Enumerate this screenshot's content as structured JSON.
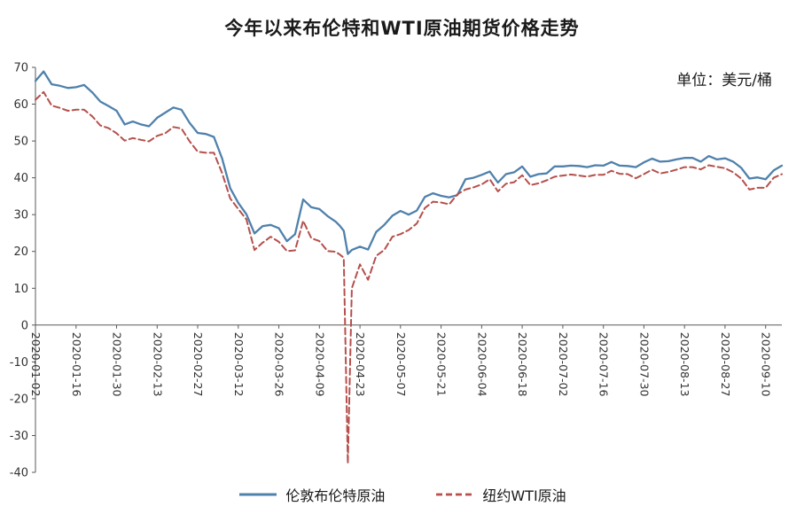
{
  "title": "今年以来布伦特和WTI原油期货价格走势",
  "unit_label": "单位：美元/桶",
  "colors": {
    "brent": "#4f81ac",
    "wti": "#b5504c",
    "axis": "#595959",
    "text": "#333333",
    "background": "#ffffff"
  },
  "chart_data": {
    "type": "line",
    "title": "今年以来布伦特和WTI原油期货价格走势",
    "ylabel": "美元/桶",
    "xlabel": "",
    "ylim": [
      -40,
      70
    ],
    "ytick_step": 10,
    "grid": false,
    "legend_position": "bottom",
    "x_tick_labels": [
      "2020-01-02",
      "2020-01-16",
      "2020-01-30",
      "2020-02-13",
      "2020-02-27",
      "2020-03-12",
      "2020-03-26",
      "2020-04-09",
      "2020-04-23",
      "2020-05-07",
      "2020-05-21",
      "2020-06-04",
      "2020-06-18",
      "2020-07-02",
      "2020-07-16",
      "2020-07-30",
      "2020-08-13",
      "2020-08-27",
      "2020-09-10"
    ],
    "x_tick_positions": [
      0,
      10,
      20,
      30,
      40,
      50,
      60,
      70,
      80,
      90,
      100,
      110,
      120,
      130,
      140,
      150,
      160,
      170,
      180
    ],
    "x": [
      0,
      2,
      4,
      6,
      8,
      10,
      12,
      14,
      16,
      18,
      20,
      22,
      24,
      26,
      28,
      30,
      32,
      34,
      36,
      38,
      40,
      42,
      44,
      46,
      48,
      50,
      52,
      54,
      56,
      58,
      60,
      62,
      64,
      66,
      68,
      70,
      72,
      74,
      75,
      76,
      77,
      78,
      80,
      82,
      84,
      86,
      88,
      90,
      92,
      94,
      96,
      98,
      100,
      102,
      104,
      106,
      108,
      110,
      112,
      114,
      116,
      118,
      120,
      122,
      124,
      126,
      128,
      130,
      132,
      134,
      136,
      138,
      140,
      142,
      144,
      146,
      148,
      150,
      152,
      154,
      156,
      158,
      160,
      162,
      164,
      166,
      168,
      170,
      172,
      174,
      176,
      178,
      180,
      182,
      184
    ],
    "series": [
      {
        "name": "伦敦布伦特原油",
        "color": "#4f81ac",
        "dash": "solid",
        "width": 2.3,
        "values": [
          66.3,
          68.9,
          65.4,
          65.0,
          64.4,
          64.6,
          65.2,
          63.2,
          60.7,
          59.5,
          58.2,
          54.5,
          55.3,
          54.5,
          54.0,
          56.3,
          57.7,
          59.1,
          58.5,
          54.9,
          52.2,
          51.9,
          51.1,
          45.3,
          37.2,
          33.2,
          30.1,
          24.9,
          26.9,
          27.2,
          26.3,
          22.8,
          24.7,
          34.1,
          32.0,
          31.5,
          29.6,
          28.1,
          27.0,
          25.6,
          19.3,
          20.4,
          21.3,
          20.5,
          25.3,
          27.2,
          29.7,
          31.0,
          30.0,
          31.1,
          34.8,
          35.8,
          35.1,
          34.7,
          35.3,
          39.6,
          40.0,
          40.8,
          41.7,
          38.7,
          41.0,
          41.5,
          43.1,
          40.3,
          41.0,
          41.2,
          43.1,
          43.1,
          43.3,
          43.2,
          42.9,
          43.4,
          43.3,
          44.3,
          43.3,
          43.2,
          42.9,
          44.2,
          45.2,
          44.4,
          44.5,
          45.0,
          45.4,
          45.4,
          44.4,
          45.9,
          45.0,
          45.3,
          44.4,
          42.7,
          39.8,
          40.1,
          39.6,
          42.0,
          43.3
        ]
      },
      {
        "name": "纽约WTI原油",
        "color": "#b5504c",
        "dash": "dashed",
        "width": 2.0,
        "values": [
          61.2,
          63.3,
          59.6,
          59.0,
          58.2,
          58.5,
          58.5,
          56.7,
          54.2,
          53.5,
          52.1,
          50.1,
          50.8,
          50.3,
          49.9,
          51.4,
          52.1,
          53.8,
          53.4,
          49.9,
          47.1,
          46.8,
          46.8,
          41.3,
          34.4,
          31.5,
          28.7,
          20.4,
          22.4,
          24.0,
          22.6,
          20.1,
          20.3,
          28.3,
          23.6,
          22.8,
          20.1,
          19.9,
          19.2,
          18.3,
          -37.6,
          10.0,
          16.5,
          12.3,
          18.8,
          20.4,
          24.0,
          24.7,
          25.8,
          27.6,
          31.8,
          33.5,
          33.3,
          32.8,
          35.5,
          36.8,
          37.4,
          38.2,
          39.6,
          36.3,
          38.4,
          38.8,
          40.7,
          38.0,
          38.5,
          39.3,
          40.3,
          40.6,
          40.9,
          40.6,
          40.3,
          40.8,
          40.8,
          41.9,
          41.1,
          41.0,
          39.9,
          41.0,
          42.2,
          41.2,
          41.6,
          42.2,
          42.9,
          42.9,
          42.3,
          43.4,
          43.0,
          42.6,
          41.5,
          39.8,
          36.8,
          37.3,
          37.3,
          40.0,
          41.0
        ]
      }
    ]
  }
}
